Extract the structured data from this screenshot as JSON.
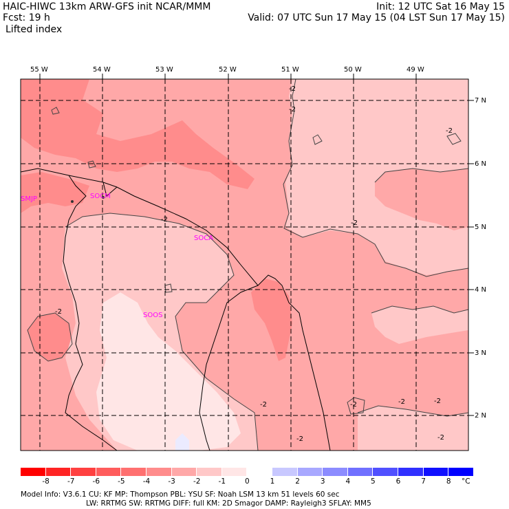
{
  "header": {
    "line1_left": "HAIC-HIWC 13km ARW-GFS init    NCAR/MMM",
    "line1_right": "Init: 12 UTC Sat 16 May 15",
    "line2_left": "Fcst:   19 h",
    "line2_right": "Valid: 07 UTC Sun 17 May 15 (04 LST Sun 17 May 15)",
    "field": "Lifted index"
  },
  "lon_labels": [
    "55 W",
    "54 W",
    "53 W",
    "52 W",
    "51 W",
    "50 W",
    "49 W"
  ],
  "lat_labels": [
    "7 N",
    "6 N",
    "5 N",
    "4 N",
    "3 N",
    "2 N"
  ],
  "stations": [
    "SMJP",
    "SOCM",
    "SOCA",
    "SOOS"
  ],
  "contour_labels": [
    "-2",
    "-2",
    "-2",
    "-2",
    "-2",
    "-2",
    "-2",
    "-2",
    "-2",
    "-2",
    "-2",
    "-2"
  ],
  "colorbar": {
    "labels": [
      "-8",
      "-7",
      "-6",
      "-5",
      "-4",
      "-3",
      "-2",
      "-1",
      "0",
      "1",
      "2",
      "3",
      "4",
      "5",
      "6",
      "7",
      "8"
    ],
    "unit": "°C",
    "colors": [
      "#ff0000",
      "#ff2424",
      "#ff4040",
      "#ff5c5c",
      "#ff7070",
      "#ff8c8c",
      "#ffa8a8",
      "#ffc8c8",
      "#ffe6e6",
      "#ffffff",
      "#c8c8ff",
      "#a8a8ff",
      "#8c8cff",
      "#7070ff",
      "#5050ff",
      "#3030ff",
      "#1010ff",
      "#0000ff"
    ]
  },
  "footer": {
    "line1": "Model Info: V3.6.1    CU: KF       MP: Thompson      PBL: YSU       SF: Noah LSM     13 km    51 levels   60 sec",
    "line2": "LW: RRTMG    SW: RRTMG   DIFF: full    KM: 2D Smagor DAMP: Rayleigh3   SFLAY: MM5"
  }
}
